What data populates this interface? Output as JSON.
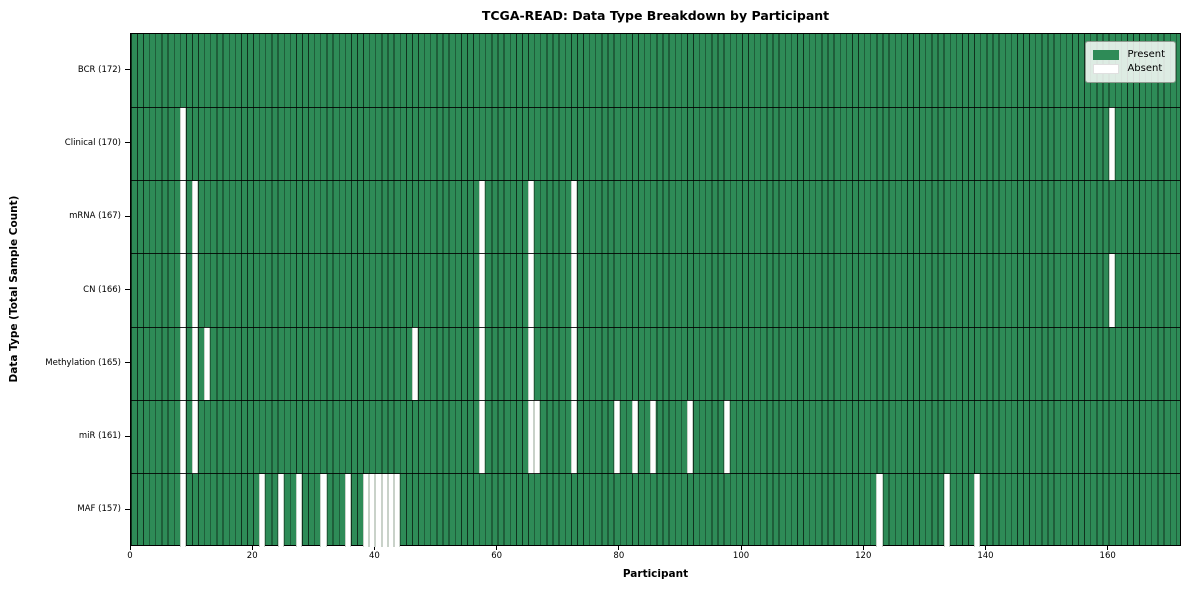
{
  "chart_data": {
    "type": "heatmap",
    "title": "TCGA-READ: Data Type Breakdown by Participant",
    "xlabel": "Participant",
    "ylabel": "Data Type (Total Sample Count)",
    "x_ticks": [
      0,
      20,
      40,
      60,
      80,
      100,
      120,
      140,
      160
    ],
    "x_max": 172,
    "n_participants": 172,
    "grid": "per-cell black borders, rows separated by black lines",
    "rows": [
      {
        "label": "BCR (172)",
        "data_type": "BCR",
        "total": 172,
        "absent_participants": []
      },
      {
        "label": "Clinical (170)",
        "data_type": "Clinical",
        "total": 170,
        "absent_participants": [
          8,
          160
        ]
      },
      {
        "label": "mRNA (167)",
        "data_type": "mRNA",
        "total": 167,
        "absent_participants": [
          8,
          10,
          57,
          65,
          72
        ]
      },
      {
        "label": "CN (166)",
        "data_type": "CN",
        "total": 166,
        "absent_participants": [
          8,
          10,
          57,
          65,
          72,
          160
        ]
      },
      {
        "label": "Methylation (165)",
        "data_type": "Methylation",
        "total": 165,
        "absent_participants": [
          8,
          10,
          12,
          46,
          57,
          65,
          72
        ]
      },
      {
        "label": "miR (161)",
        "data_type": "miR",
        "total": 161,
        "absent_participants": [
          8,
          10,
          57,
          65,
          66,
          72,
          79,
          82,
          85,
          91,
          97
        ]
      },
      {
        "label": "MAF (157)",
        "data_type": "MAF",
        "total": 157,
        "absent_participants": [
          8,
          21,
          24,
          27,
          31,
          35,
          38,
          39,
          40,
          41,
          42,
          43,
          122,
          133,
          138
        ]
      }
    ],
    "legend": {
      "position": "upper right",
      "entries": [
        {
          "label": "Present",
          "color": "#2e8b57"
        },
        {
          "label": "Absent",
          "color": "#ffffff"
        }
      ]
    },
    "colors": {
      "present": "#2e8b57",
      "absent": "#ffffff",
      "cell_border": "#000000",
      "background": "#ffffff"
    }
  }
}
